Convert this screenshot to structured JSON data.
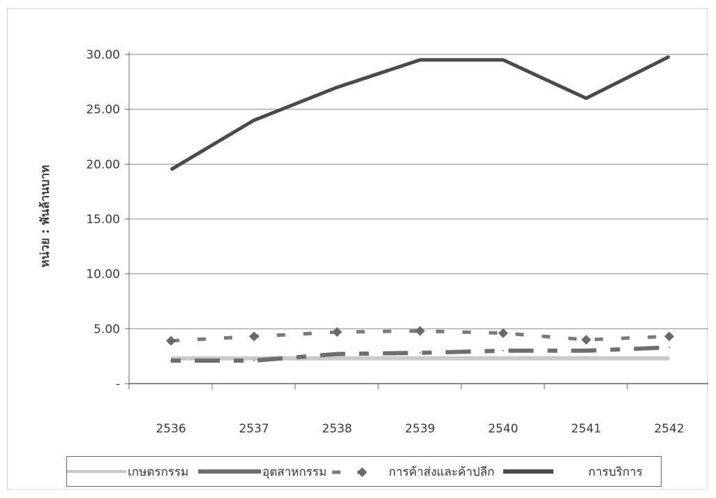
{
  "chart_data": {
    "type": "line",
    "title": "",
    "xlabel": "",
    "ylabel": "หน่วย : พันล้านบาท",
    "categories": [
      "2536",
      "2537",
      "2538",
      "2539",
      "2540",
      "2541",
      "2542"
    ],
    "ylim": [
      0,
      30
    ],
    "yticks": [
      0,
      5,
      10,
      15,
      20,
      25,
      30
    ],
    "ytick_labels": [
      "-",
      "5.00",
      "10.00",
      "15.00",
      "20.00",
      "25.00",
      "30.00"
    ],
    "grid": true,
    "legend_position": "bottom",
    "series": [
      {
        "name": "เกษตรกรรม",
        "values": [
          2.3,
          2.3,
          2.3,
          2.3,
          2.3,
          2.3,
          2.3
        ],
        "color": "#c8c8c8",
        "style": "solid"
      },
      {
        "name": "อุตสาหกรรม",
        "values": [
          2.1,
          2.1,
          2.7,
          2.8,
          3.0,
          3.0,
          3.3
        ],
        "color": "#6e6e6e",
        "style": "dashed"
      },
      {
        "name": "การค้าส่งและค้าปลีก",
        "values": [
          3.9,
          4.3,
          4.7,
          4.8,
          4.6,
          4.0,
          4.3
        ],
        "color": "#7a7a7a",
        "style": "dashed-diamond"
      },
      {
        "name": "การบริการ",
        "values": [
          19.5,
          24.0,
          27.0,
          29.5,
          29.5,
          26.0,
          29.8
        ],
        "color": "#4a4a4a",
        "style": "solid"
      }
    ]
  }
}
